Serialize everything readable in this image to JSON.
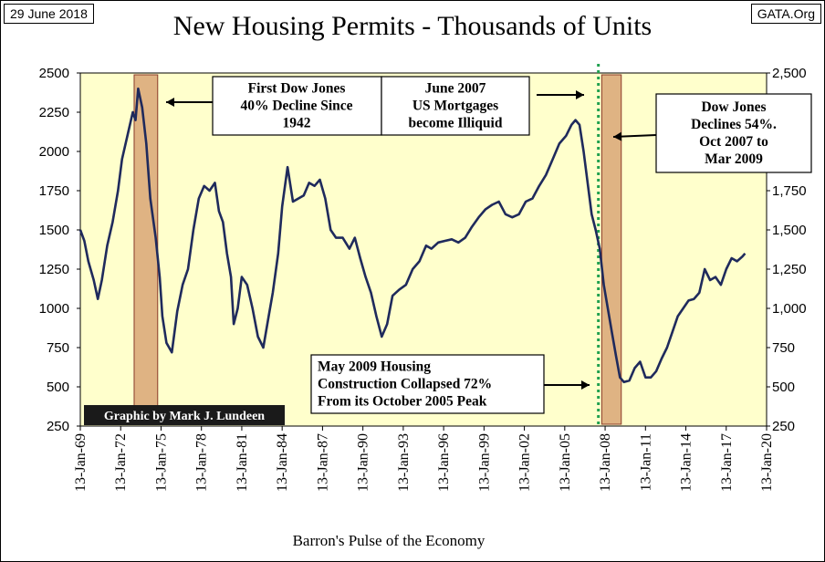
{
  "header": {
    "date": "29 June 2018",
    "source": "GATA.Org",
    "title": "New Housing Permits - Thousands of Units"
  },
  "chart_data": {
    "type": "line",
    "title": "New Housing Permits - Thousands of Units",
    "xlabel": "Barron's Pulse of the Economy",
    "ylabel": "",
    "xlim": [
      "13-Jan-69",
      "13-Jan-20"
    ],
    "ylim": [
      250,
      2500
    ],
    "background": "#ffffcc",
    "line_color": "#1f2a5c",
    "y_ticks_left": [
      "250",
      "500",
      "750",
      "1000",
      "1250",
      "1500",
      "1750",
      "2000",
      "2250",
      "2500"
    ],
    "y_ticks_right": [
      "250",
      "500",
      "750",
      "1,000",
      "1,250",
      "1,500",
      "1,750",
      "2,000",
      "2,250",
      "2,500"
    ],
    "x_ticks": [
      "13-Jan-69",
      "13-Jan-72",
      "13-Jan-75",
      "13-Jan-78",
      "13-Jan-81",
      "13-Jan-84",
      "13-Jan-87",
      "13-Jan-90",
      "13-Jan-93",
      "13-Jan-96",
      "13-Jan-99",
      "13-Jan-02",
      "13-Jan-05",
      "13-Jan-08",
      "13-Jan-11",
      "13-Jan-14",
      "13-Jan-17",
      "13-Jan-20"
    ],
    "series": [
      {
        "x": [
          1969.0,
          1969.3,
          1969.6,
          1970.0,
          1970.3,
          1970.6,
          1971.0,
          1971.4,
          1971.8,
          1972.1,
          1972.5,
          1972.9,
          1973.1,
          1973.3,
          1973.6,
          1973.9,
          1974.2,
          1974.6,
          1974.9,
          1975.1,
          1975.4,
          1975.8,
          1976.2,
          1976.6,
          1977.0,
          1977.4,
          1977.8,
          1978.2,
          1978.6,
          1979.0,
          1979.3,
          1979.6,
          1979.9,
          1980.2,
          1980.4,
          1980.7,
          1981.0,
          1981.4,
          1981.8,
          1982.2,
          1982.6,
          1983.0,
          1983.3,
          1983.7,
          1984.0,
          1984.4,
          1984.8,
          1985.2,
          1985.6,
          1986.0,
          1986.4,
          1986.8,
          1987.2,
          1987.6,
          1988.0,
          1988.5,
          1989.0,
          1989.4,
          1989.8,
          1990.2,
          1990.6,
          1991.0,
          1991.4,
          1991.8,
          1992.2,
          1992.7,
          1993.2,
          1993.7,
          1994.2,
          1994.7,
          1995.1,
          1995.6,
          1996.1,
          1996.6,
          1997.1,
          1997.6,
          1998.1,
          1998.6,
          1999.1,
          1999.6,
          2000.1,
          2000.6,
          2001.1,
          2001.6,
          2002.1,
          2002.6,
          2003.1,
          2003.6,
          2004.1,
          2004.6,
          2005.1,
          2005.5,
          2005.8,
          2006.1,
          2006.4,
          2006.7,
          2007.0,
          2007.3,
          2007.6,
          2007.9,
          2008.2,
          2008.5,
          2008.8,
          2009.1,
          2009.4,
          2009.8,
          2010.2,
          2010.6,
          2011.0,
          2011.4,
          2011.8,
          2012.2,
          2012.6,
          2013.0,
          2013.4,
          2013.8,
          2014.2,
          2014.6,
          2015.0,
          2015.4,
          2015.8,
          2016.2,
          2016.6,
          2017.0,
          2017.4,
          2017.8,
          2018.2,
          2018.4
        ],
        "y": [
          1500,
          1430,
          1300,
          1180,
          1060,
          1180,
          1400,
          1550,
          1750,
          1950,
          2100,
          2250,
          2200,
          2400,
          2280,
          2050,
          1700,
          1450,
          1200,
          950,
          780,
          720,
          980,
          1150,
          1250,
          1500,
          1700,
          1780,
          1750,
          1800,
          1620,
          1550,
          1350,
          1200,
          900,
          1000,
          1200,
          1150,
          1000,
          820,
          750,
          950,
          1100,
          1350,
          1650,
          1900,
          1680,
          1700,
          1720,
          1800,
          1780,
          1820,
          1700,
          1500,
          1450,
          1450,
          1380,
          1450,
          1320,
          1200,
          1100,
          950,
          820,
          900,
          1080,
          1120,
          1150,
          1250,
          1300,
          1400,
          1380,
          1420,
          1430,
          1440,
          1420,
          1450,
          1520,
          1580,
          1630,
          1660,
          1680,
          1600,
          1580,
          1600,
          1680,
          1700,
          1780,
          1850,
          1950,
          2050,
          2100,
          2170,
          2200,
          2170,
          2000,
          1800,
          1600,
          1500,
          1380,
          1150,
          1000,
          850,
          700,
          560,
          530,
          540,
          620,
          660,
          560,
          560,
          600,
          680,
          750,
          850,
          950,
          1000,
          1050,
          1060,
          1100,
          1250,
          1180,
          1200,
          1150,
          1250,
          1320,
          1300,
          1330,
          1350
        ]
      }
    ],
    "shaded_periods": [
      {
        "from": 1973.0,
        "to": 1974.75
      },
      {
        "from": 2007.75,
        "to": 2009.2
      }
    ],
    "vertical_marker": {
      "x": 2007.5,
      "color": "#20a050"
    },
    "annotations": [
      {
        "lines": [
          "First Dow Jones",
          "40% Decline Since",
          "1942"
        ]
      },
      {
        "lines": [
          "June 2007",
          "US Mortgages",
          "become Illiquid"
        ]
      },
      {
        "lines": [
          "Dow Jones",
          "Declines 54%.",
          "Oct 2007 to",
          "Mar 2009"
        ]
      },
      {
        "lines": [
          "May 2009 Housing",
          "Construction Collapsed 72%",
          "From its October 2005 Peak"
        ]
      }
    ],
    "credit": "Graphic by Mark J. Lundeen"
  }
}
